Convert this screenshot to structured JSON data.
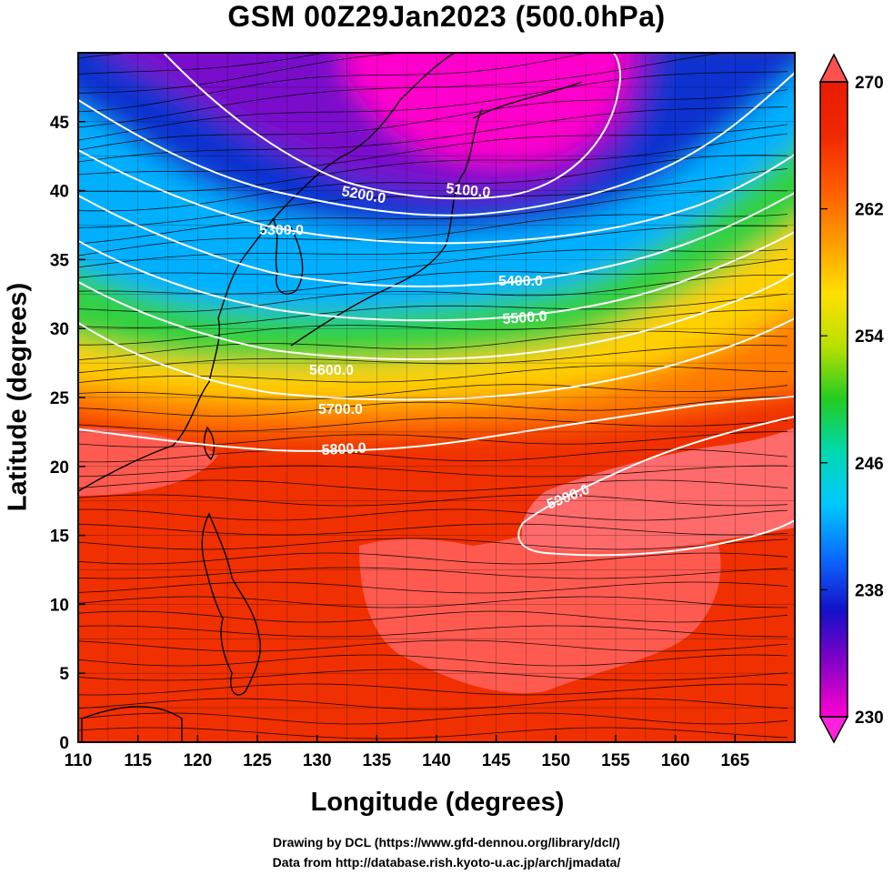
{
  "title": "GSM 00Z29Jan2023 (500.0hPa)",
  "x_axis": {
    "title": "Longitude (degrees)",
    "ticks": [
      "110",
      "115",
      "120",
      "125",
      "130",
      "135",
      "140",
      "145",
      "150",
      "155",
      "160",
      "165"
    ]
  },
  "y_axis": {
    "title": "Latitude  (degrees)",
    "ticks": [
      "0",
      "5",
      "10",
      "15",
      "20",
      "25",
      "30",
      "35",
      "40",
      "45"
    ]
  },
  "colorbar": {
    "labels": [
      "270",
      "262",
      "254",
      "246",
      "238",
      "230"
    ],
    "stops": [
      "#ff00d0",
      "#8a00c8",
      "#1410c8",
      "#0a6aff",
      "#00c8ff",
      "#00d9b0",
      "#22cc22",
      "#b8e000",
      "#ffe000",
      "#ff9a00",
      "#ff5a00",
      "#f02800",
      "#e81c00"
    ]
  },
  "contours": {
    "labels": [
      "5100.0",
      "5200.0",
      "5300.0",
      "5400.0",
      "5500.0",
      "5600.0",
      "5700.0",
      "5800.0",
      "5900.0"
    ]
  },
  "map": {
    "lon_range": [
      110,
      170
    ],
    "lat_range": [
      0,
      50
    ],
    "field_colors": {
      "cold_core": "#ff00cc",
      "purple": "#7a10cc",
      "blue": "#1030d0",
      "cyan": "#00b0ff",
      "green": "#30d040",
      "yellow": "#ffd000",
      "orange": "#ff7a00",
      "red": "#f03000",
      "warm_patch": "#ff5a50",
      "warmest": "#ff6a6a"
    }
  },
  "credits": [
    "Drawing by DCL (https://www.gfd-dennou.org/library/dcl/)",
    "Data from http://database.rish.kyoto-u.ac.jp/arch/jmadata/"
  ]
}
